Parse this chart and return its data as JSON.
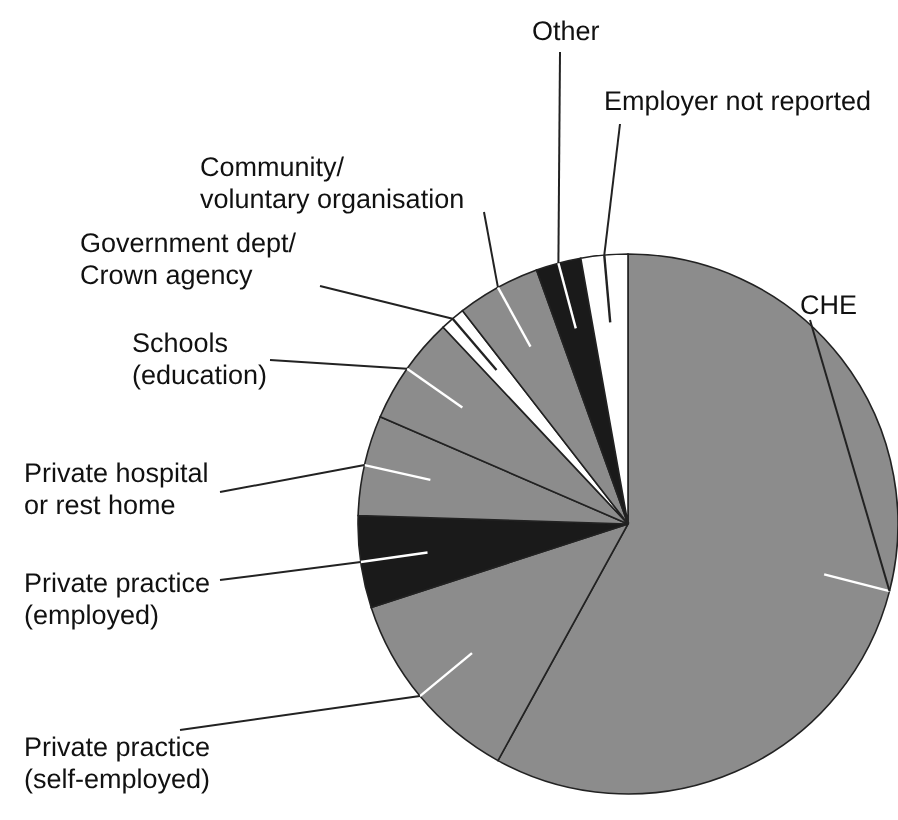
{
  "chart_data": {
    "type": "pie",
    "categories": [
      "CHE",
      "Private practice\n(self-employed)",
      "Private practice\n(employed)",
      "Private hospital\nor rest home",
      "Schools\n(education)",
      "Government dept/\nCrown agency",
      "Community/\nvoluntary organisation",
      "Other",
      "Employer not reported"
    ],
    "values": [
      58,
      12,
      5.5,
      6,
      6.5,
      1.5,
      5,
      2.7,
      2.8
    ],
    "colors": [
      "#8c8c8c",
      "#8c8c8c",
      "#1a1a1a",
      "#8c8c8c",
      "#8c8c8c",
      "#ffffff",
      "#8c8c8c",
      "#1a1a1a",
      "#ffffff"
    ]
  }
}
